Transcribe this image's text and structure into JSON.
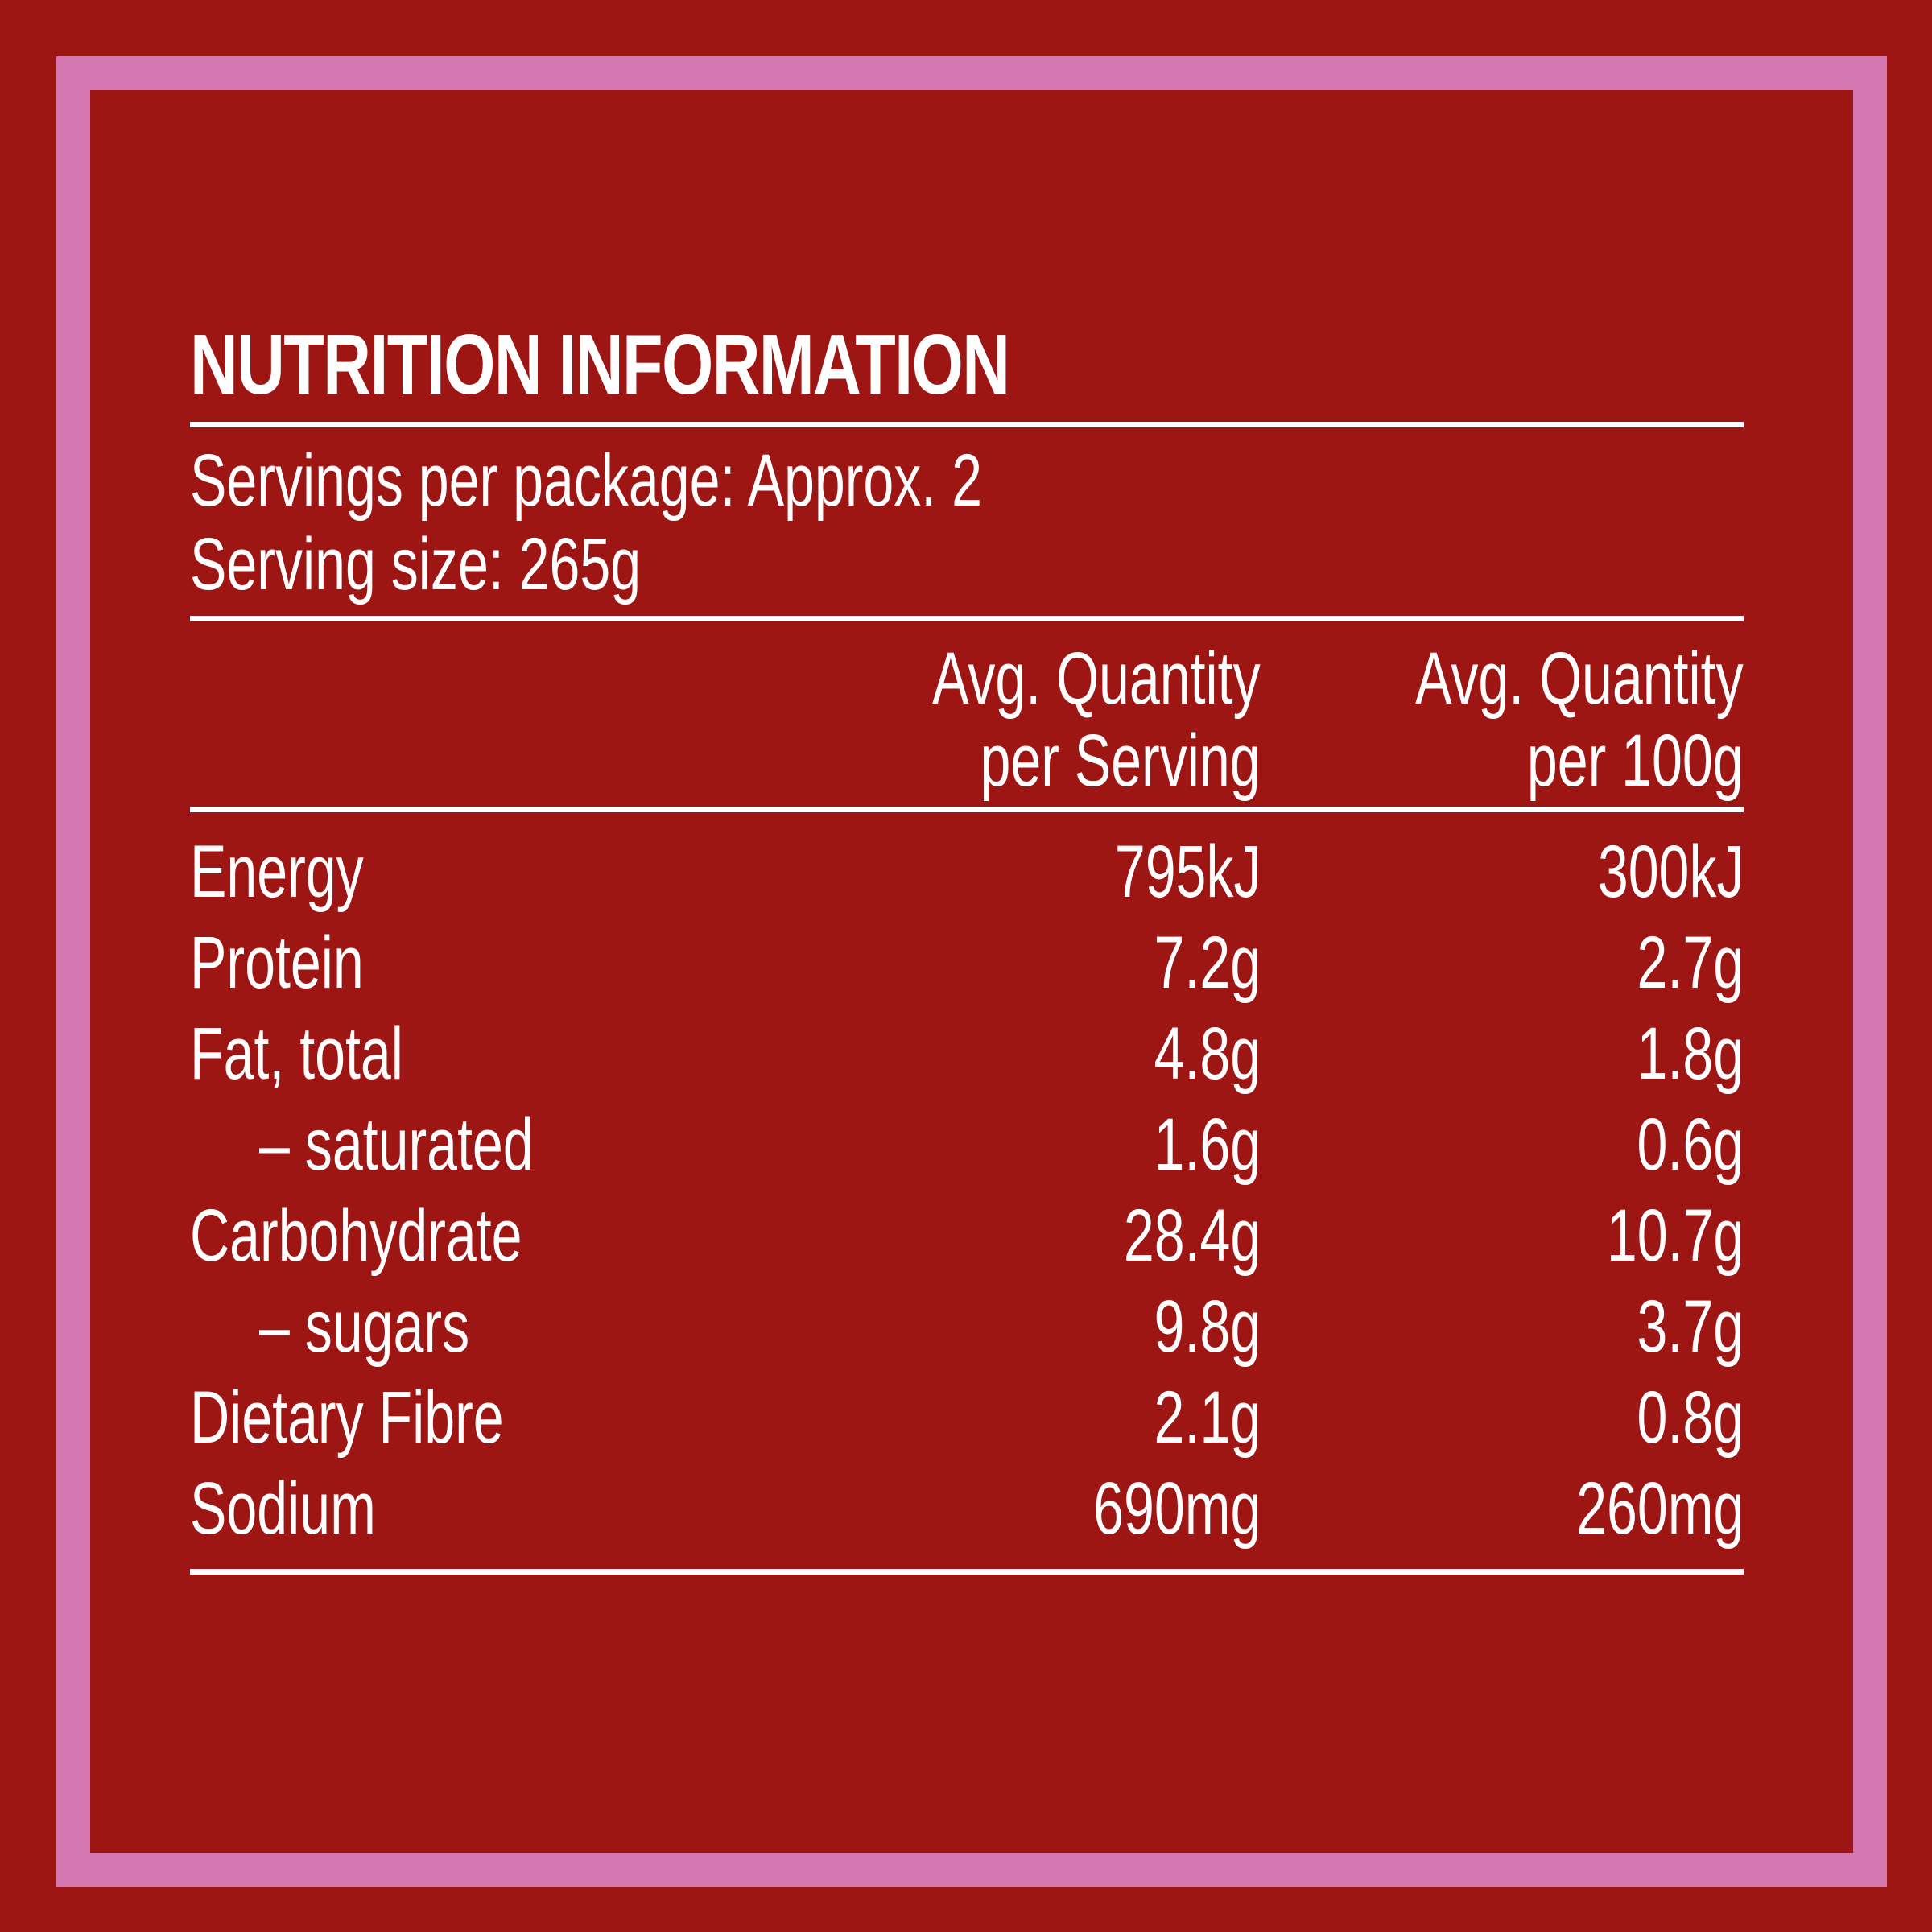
{
  "title": "NUTRITION INFORMATION",
  "servings_per_package": "Servings per package: Approx. 2",
  "serving_size": "Serving size: 265g",
  "columns": {
    "per_serving_line1": "Avg. Quantity",
    "per_serving_line2": "per Serving",
    "per_100g_line1": "Avg. Quantity",
    "per_100g_line2": "per 100g"
  },
  "rows": [
    {
      "name": "Energy",
      "per_serving": "795kJ",
      "per_100g": "300kJ"
    },
    {
      "name": "Protein",
      "per_serving": "7.2g",
      "per_100g": "2.7g"
    },
    {
      "name": "Fat, total",
      "per_serving": "4.8g",
      "per_100g": "1.8g"
    },
    {
      "name": "– saturated",
      "per_serving": "1.6g",
      "per_100g": "0.6g"
    },
    {
      "name": "Carbohydrate",
      "per_serving": "28.4g",
      "per_100g": "10.7g"
    },
    {
      "name": "– sugars",
      "per_serving": "9.8g",
      "per_100g": "3.7g"
    },
    {
      "name": "Dietary Fibre",
      "per_serving": "2.1g",
      "per_100g": "0.8g"
    },
    {
      "name": "Sodium",
      "per_serving": "690mg",
      "per_100g": "260mg"
    }
  ],
  "colors": {
    "background": "#9e1614",
    "border": "#d477b1",
    "text": "#ffffff"
  }
}
